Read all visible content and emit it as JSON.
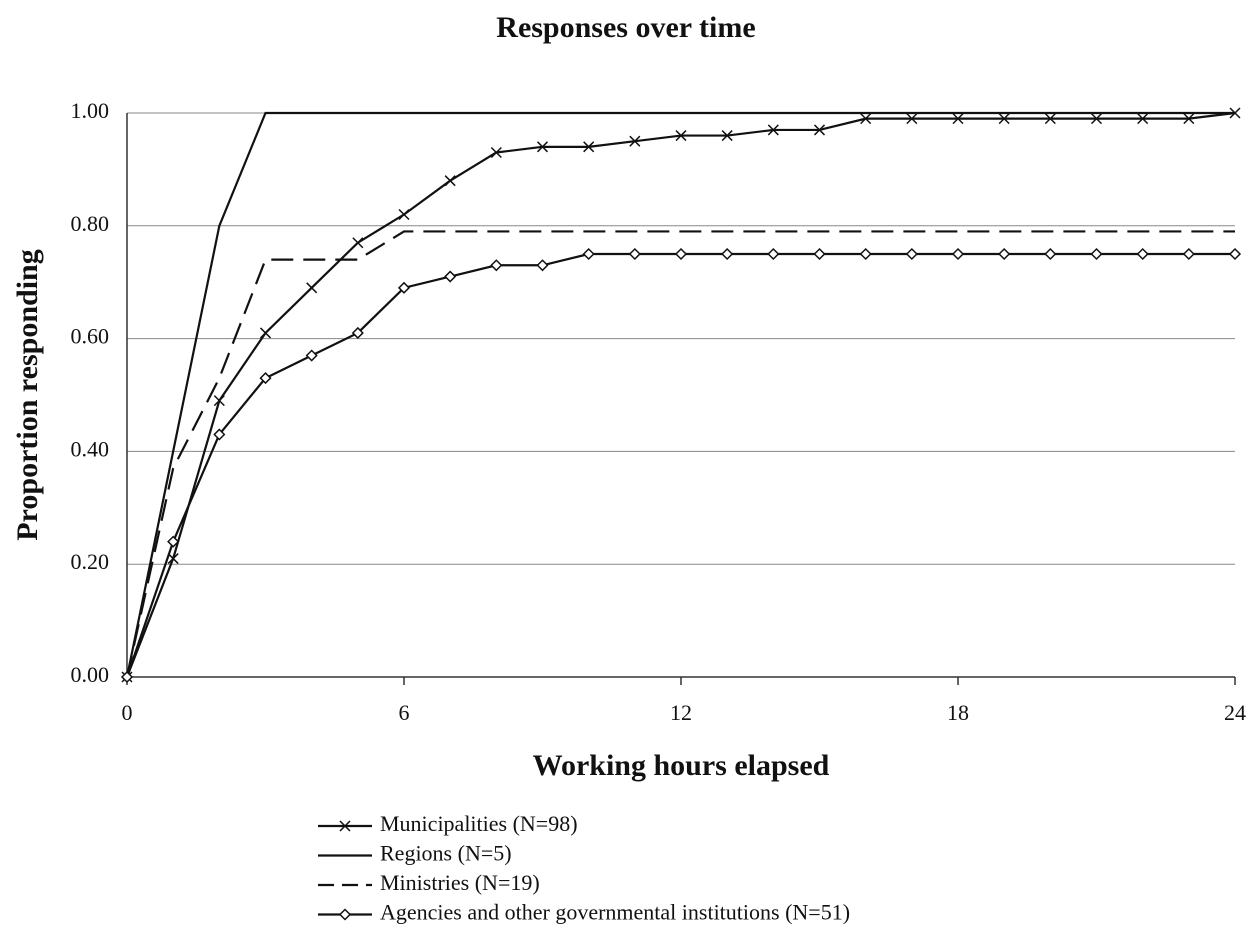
{
  "chart_data": {
    "type": "line",
    "title": "Responses over time",
    "x_label": "Working hours elapsed",
    "y_label": "Proportion responding",
    "x": [
      0,
      1,
      2,
      3,
      4,
      5,
      6,
      7,
      8,
      9,
      10,
      11,
      12,
      13,
      14,
      15,
      16,
      17,
      18,
      19,
      20,
      21,
      22,
      23,
      24
    ],
    "series": [
      {
        "name": "Municipalities (N=98)",
        "color": "#111111",
        "marker": "x",
        "dash": false,
        "values": [
          0,
          0.21,
          0.49,
          0.61,
          0.69,
          0.77,
          0.82,
          0.88,
          0.93,
          0.94,
          0.94,
          0.95,
          0.96,
          0.96,
          0.97,
          0.97,
          0.99,
          0.99,
          0.99,
          0.99,
          0.99,
          0.99,
          0.99,
          0.99,
          1.0
        ]
      },
      {
        "name": "Regions (N=5)",
        "color": "#111111",
        "marker": null,
        "dash": false,
        "values": [
          0,
          0.4,
          0.8,
          1.0,
          1.0,
          1.0,
          1.0,
          1.0,
          1.0,
          1.0,
          1.0,
          1.0,
          1.0,
          1.0,
          1.0,
          1.0,
          1.0,
          1.0,
          1.0,
          1.0,
          1.0,
          1.0,
          1.0,
          1.0,
          1.0
        ]
      },
      {
        "name": "Ministries (N=19)",
        "color": "#111111",
        "marker": null,
        "dash": true,
        "values": [
          0,
          0.37,
          0.53,
          0.74,
          0.74,
          0.74,
          0.79,
          0.79,
          0.79,
          0.79,
          0.79,
          0.79,
          0.79,
          0.79,
          0.79,
          0.79,
          0.79,
          0.79,
          0.79,
          0.79,
          0.79,
          0.79,
          0.79,
          0.79,
          0.79
        ]
      },
      {
        "name": "Agencies and other governmental institutions (N=51)",
        "color": "#111111",
        "marker": "diamond",
        "dash": false,
        "values": [
          0,
          0.24,
          0.43,
          0.53,
          0.57,
          0.61,
          0.69,
          0.71,
          0.73,
          0.73,
          0.75,
          0.75,
          0.75,
          0.75,
          0.75,
          0.75,
          0.75,
          0.75,
          0.75,
          0.75,
          0.75,
          0.75,
          0.75,
          0.75,
          0.75
        ]
      }
    ],
    "xlim": [
      0,
      24
    ],
    "xticks": [
      0,
      6,
      12,
      18,
      24
    ],
    "ylim": [
      0,
      1
    ],
    "yticks": [
      {
        "value": 0,
        "label": "0.00"
      },
      {
        "value": 0.2,
        "label": "0.20"
      },
      {
        "value": 0.4,
        "label": "0.40"
      },
      {
        "value": 0.6,
        "label": "0.60"
      },
      {
        "value": 0.8,
        "label": "0.80"
      },
      {
        "value": 1,
        "label": "1.00"
      }
    ],
    "grid": true,
    "legend": "bottom"
  }
}
